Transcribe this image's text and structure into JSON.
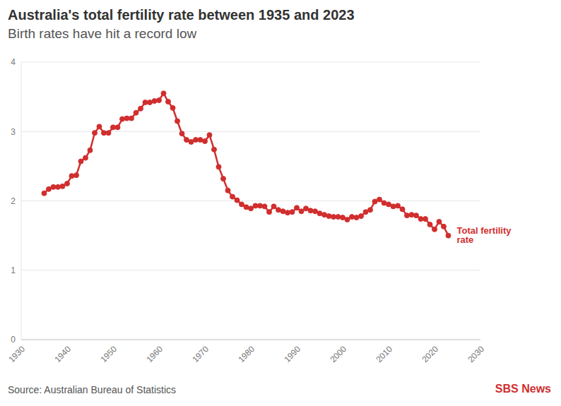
{
  "chart_data": {
    "type": "line",
    "title": "Australia's total fertility rate between 1935 and 2023",
    "subtitle": "Birth rates have hit a record low",
    "annotation": "Total fertility rate",
    "source": "Source: Australian Bureau of Statistics",
    "logo": "SBS News",
    "color": "#d12e2e",
    "marker": "circle",
    "grid": true,
    "xlim": [
      1930,
      2030
    ],
    "xticks": [
      1930,
      1940,
      1950,
      1960,
      1970,
      1980,
      1990,
      2000,
      2010,
      2020,
      2030
    ],
    "ylim": [
      0,
      4
    ],
    "yticks": [
      0,
      1,
      2,
      3,
      4
    ],
    "x": [
      1935,
      1936,
      1937,
      1938,
      1939,
      1940,
      1941,
      1942,
      1943,
      1944,
      1945,
      1946,
      1947,
      1948,
      1949,
      1950,
      1951,
      1952,
      1953,
      1954,
      1955,
      1956,
      1957,
      1958,
      1959,
      1960,
      1961,
      1962,
      1963,
      1964,
      1965,
      1966,
      1967,
      1968,
      1969,
      1970,
      1971,
      1972,
      1973,
      1974,
      1975,
      1976,
      1977,
      1978,
      1979,
      1980,
      1981,
      1982,
      1983,
      1984,
      1985,
      1986,
      1987,
      1988,
      1989,
      1990,
      1991,
      1992,
      1993,
      1994,
      1995,
      1996,
      1997,
      1998,
      1999,
      2000,
      2001,
      2002,
      2003,
      2004,
      2005,
      2006,
      2007,
      2008,
      2009,
      2010,
      2011,
      2012,
      2013,
      2014,
      2015,
      2016,
      2017,
      2018,
      2019,
      2020,
      2021,
      2022,
      2023
    ],
    "values": [
      2.11,
      2.17,
      2.2,
      2.2,
      2.21,
      2.25,
      2.36,
      2.37,
      2.57,
      2.62,
      2.73,
      2.98,
      3.07,
      2.98,
      2.98,
      3.06,
      3.06,
      3.18,
      3.19,
      3.19,
      3.27,
      3.33,
      3.42,
      3.42,
      3.44,
      3.45,
      3.55,
      3.43,
      3.34,
      3.15,
      2.97,
      2.88,
      2.85,
      2.88,
      2.88,
      2.86,
      2.95,
      2.74,
      2.49,
      2.32,
      2.15,
      2.06,
      2.01,
      1.95,
      1.91,
      1.89,
      1.93,
      1.93,
      1.92,
      1.84,
      1.92,
      1.87,
      1.85,
      1.83,
      1.84,
      1.9,
      1.85,
      1.89,
      1.86,
      1.85,
      1.82,
      1.8,
      1.78,
      1.77,
      1.77,
      1.76,
      1.73,
      1.77,
      1.76,
      1.78,
      1.84,
      1.87,
      1.99,
      2.02,
      1.97,
      1.95,
      1.92,
      1.93,
      1.88,
      1.79,
      1.8,
      1.79,
      1.74,
      1.74,
      1.66,
      1.59,
      1.7,
      1.63,
      1.5
    ]
  }
}
